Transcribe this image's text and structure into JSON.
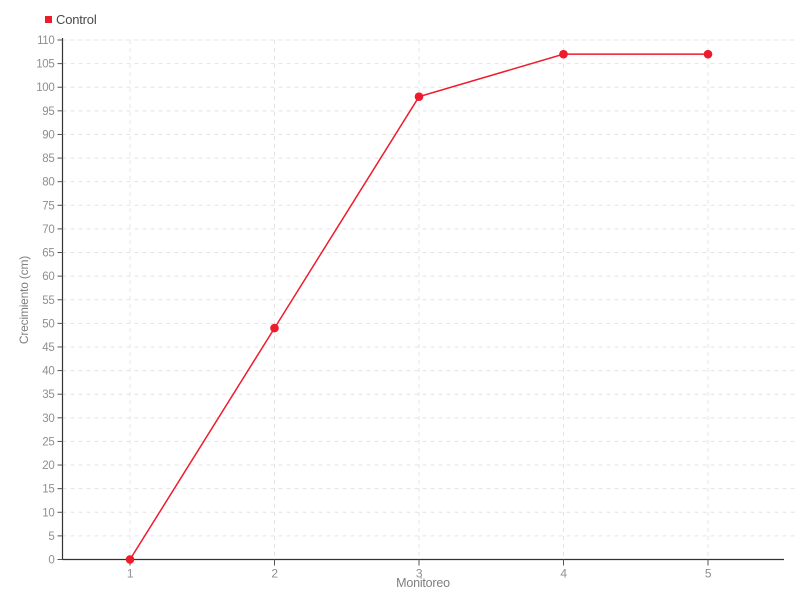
{
  "chart_data": {
    "type": "line",
    "title": "",
    "xlabel": "Monitoreo",
    "ylabel": "Crecimiento (cm)",
    "categories": [
      "1",
      "2",
      "3",
      "4",
      "5"
    ],
    "series": [
      {
        "name": "Control",
        "color": "#ed1c2d",
        "values": [
          0,
          49,
          98,
          107,
          107
        ]
      }
    ],
    "ylim": [
      0,
      110
    ],
    "y_tick_step": 5,
    "y_tick_labels": [
      "0",
      "5",
      "10",
      "15",
      "20",
      "25",
      "30",
      "35",
      "40",
      "45",
      "50",
      "55",
      "60",
      "65",
      "70",
      "75",
      "80",
      "85",
      "90",
      "95",
      "100",
      "105",
      "110"
    ],
    "marker": "circle",
    "legend_position": "top-left",
    "grid": {
      "horizontal": true,
      "vertical": true,
      "style": "dashed",
      "color": "#e4e4e4"
    }
  },
  "colors": {
    "background": "#ffffff",
    "axis": "#333333",
    "tick": "#555555",
    "tick_label": "#8f8f8f",
    "axis_title": "#7f7f7f",
    "legend_text": "#4a4a4a"
  }
}
